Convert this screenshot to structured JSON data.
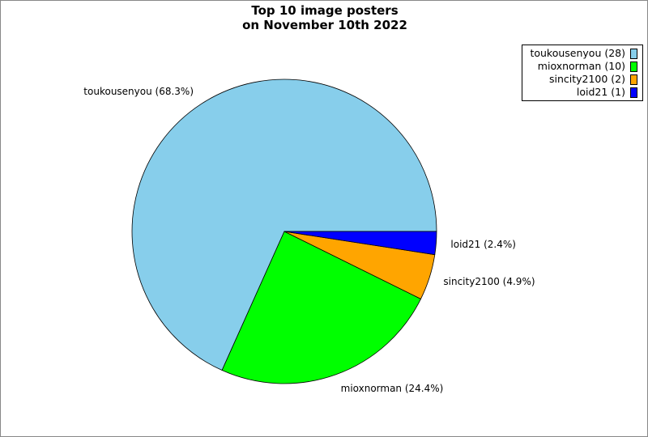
{
  "chart_data": {
    "type": "pie",
    "title_lines": [
      "Top 10 image posters",
      "on November 10th 2022"
    ],
    "slices": [
      {
        "name": "toukousenyou",
        "value": 28,
        "label": "toukousenyou (68.3%)",
        "legend": "toukousenyou (28)",
        "color": "#87ceeb"
      },
      {
        "name": "mioxnorman",
        "value": 10,
        "label": "mioxnorman (24.4%)",
        "legend": "mioxnorman (10)",
        "color": "#00ff00"
      },
      {
        "name": "sincity2100",
        "value": 2,
        "label": "sincity2100 (4.9%)",
        "legend": "sincity2100 (2)",
        "color": "#ffa500"
      },
      {
        "name": "loid21",
        "value": 1,
        "label": "loid21 (2.4%)",
        "legend": "loid21 (1)",
        "color": "#0000ff"
      }
    ],
    "start_angle_deg": 0,
    "direction": "counterclockwise",
    "legend_position": "top-right"
  }
}
